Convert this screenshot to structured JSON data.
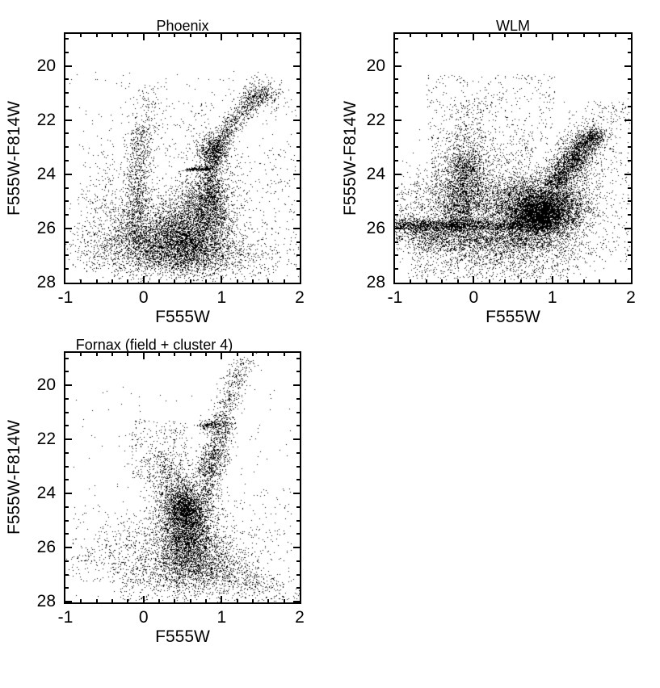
{
  "page": {
    "background": "#ffffff",
    "marker_color": "#000000"
  },
  "chart_data": [
    {
      "type": "scatter",
      "title": "Phoenix",
      "xlabel": "F555W",
      "ylabel": "F555W-F814W",
      "xlim": [
        -1,
        2
      ],
      "ylim": [
        28.0,
        18.82
      ],
      "xticks": [
        -1,
        0,
        1,
        2
      ],
      "yticks": [
        20,
        22,
        24,
        26,
        28
      ],
      "xtick_minor_step": 0.2,
      "ytick_minor_step": 0.5,
      "grid": false,
      "legend": null,
      "marker_size_px": 1,
      "seed": 101,
      "clusters": [
        {
          "kind": "gauss",
          "x": 0.48,
          "y": 26.35,
          "sx": 0.3,
          "sy": 0.62,
          "n": 2800
        },
        {
          "kind": "gauss",
          "x": 0.52,
          "y": 26.9,
          "sx": 0.45,
          "sy": 0.45,
          "n": 1400
        },
        {
          "kind": "gauss",
          "x": 0.3,
          "y": 25.9,
          "sx": 0.45,
          "sy": 0.75,
          "n": 900
        },
        {
          "kind": "band",
          "x1": -0.13,
          "y1": 26.5,
          "x2": -0.03,
          "y2": 22.2,
          "s": 0.085,
          "n": 950
        },
        {
          "kind": "band",
          "x1": 0.0,
          "y1": 22.2,
          "x2": 0.08,
          "y2": 20.7,
          "s": 0.1,
          "n": 90
        },
        {
          "kind": "gauss",
          "x": -0.38,
          "y": 25.2,
          "sx": 0.22,
          "sy": 1.1,
          "n": 380
        },
        {
          "kind": "gauss",
          "x": -0.35,
          "y": 26.6,
          "sx": 0.3,
          "sy": 0.5,
          "n": 320
        },
        {
          "kind": "gauss",
          "x": 0.78,
          "y": 25.0,
          "sx": 0.2,
          "sy": 0.55,
          "n": 1100
        },
        {
          "kind": "band",
          "x1": 0.86,
          "y1": 26.0,
          "x2": 0.88,
          "y2": 23.2,
          "s": 0.09,
          "n": 900
        },
        {
          "kind": "gauss",
          "x": 0.9,
          "y": 23.1,
          "sx": 0.11,
          "sy": 0.3,
          "n": 600
        },
        {
          "kind": "band",
          "x1": 0.55,
          "y1": 23.82,
          "x2": 0.86,
          "y2": 23.78,
          "s": 0.03,
          "n": 170
        },
        {
          "kind": "band",
          "x1": 0.93,
          "y1": 23.1,
          "x2": 1.16,
          "y2": 22.0,
          "s": 0.07,
          "n": 330
        },
        {
          "kind": "band",
          "x1": 1.16,
          "y1": 22.0,
          "x2": 1.5,
          "y2": 20.95,
          "s": 0.09,
          "n": 330
        },
        {
          "kind": "gauss",
          "x": 1.52,
          "y": 21.05,
          "sx": 0.14,
          "sy": 0.28,
          "n": 280
        },
        {
          "kind": "band",
          "x1": -0.8,
          "y1": 26.9,
          "x2": 1.85,
          "y2": 27.25,
          "s": 0.45,
          "n": 520
        },
        {
          "kind": "uniform",
          "xr": [
            -0.95,
            1.95
          ],
          "yr": [
            20.2,
            27.9
          ],
          "n": 330
        },
        {
          "kind": "uniform",
          "xr": [
            0.05,
            0.9
          ],
          "yr": [
            21.2,
            23.4
          ],
          "n": 110
        },
        {
          "kind": "uniform",
          "xr": [
            1.0,
            1.95
          ],
          "yr": [
            23.0,
            27.0
          ],
          "n": 160
        }
      ]
    },
    {
      "type": "scatter",
      "title": "WLM",
      "xlabel": "F555W",
      "ylabel": "F555W-F814W",
      "xlim": [
        -1,
        2
      ],
      "ylim": [
        28.0,
        18.82
      ],
      "xticks": [
        -1,
        0,
        1,
        2
      ],
      "yticks": [
        20,
        22,
        24,
        26,
        28
      ],
      "xtick_minor_step": 0.2,
      "ytick_minor_step": 0.5,
      "grid": false,
      "legend": null,
      "marker_size_px": 1,
      "seed": 202,
      "clusters": [
        {
          "kind": "gauss",
          "x": 0.88,
          "y": 25.15,
          "sx": 0.3,
          "sy": 0.55,
          "n": 3800
        },
        {
          "kind": "gauss",
          "x": 0.85,
          "y": 25.45,
          "sx": 0.18,
          "sy": 0.33,
          "n": 2400
        },
        {
          "kind": "band",
          "x1": 1.02,
          "y1": 24.4,
          "x2": 1.48,
          "y2": 22.65,
          "s": 0.1,
          "n": 1400
        },
        {
          "kind": "gauss",
          "x": 1.25,
          "y": 23.4,
          "sx": 0.2,
          "sy": 0.5,
          "n": 500
        },
        {
          "kind": "gauss",
          "x": 1.5,
          "y": 22.55,
          "sx": 0.1,
          "sy": 0.16,
          "n": 380
        },
        {
          "kind": "band",
          "x1": -0.18,
          "y1": 26.05,
          "x2": -0.08,
          "y2": 23.3,
          "s": 0.13,
          "n": 1500
        },
        {
          "kind": "gauss",
          "x": -0.18,
          "y": 24.7,
          "sx": 0.3,
          "sy": 0.85,
          "n": 850
        },
        {
          "kind": "band",
          "x1": -0.1,
          "y1": 23.3,
          "x2": 0.0,
          "y2": 21.2,
          "s": 0.14,
          "n": 230
        },
        {
          "kind": "band",
          "x1": -0.98,
          "y1": 25.88,
          "x2": 1.05,
          "y2": 25.92,
          "s": 0.12,
          "n": 2000
        },
        {
          "kind": "band",
          "x1": -0.7,
          "y1": 26.35,
          "x2": 1.0,
          "y2": 26.45,
          "s": 0.2,
          "n": 1100
        },
        {
          "kind": "band",
          "x1": -1.0,
          "y1": 25.9,
          "x2": -0.45,
          "y2": 25.9,
          "s": 0.22,
          "n": 420
        },
        {
          "kind": "gauss",
          "x": 0.3,
          "y": 26.8,
          "sx": 0.55,
          "sy": 0.5,
          "n": 1000
        },
        {
          "kind": "uniform",
          "xr": [
            -0.8,
            1.35
          ],
          "yr": [
            26.1,
            27.85
          ],
          "n": 700
        },
        {
          "kind": "gauss",
          "x": 0.35,
          "y": 25.2,
          "sx": 0.42,
          "sy": 0.55,
          "n": 900
        },
        {
          "kind": "uniform",
          "xr": [
            -0.55,
            0.75
          ],
          "yr": [
            22.4,
            25.3
          ],
          "n": 800
        },
        {
          "kind": "uniform",
          "xr": [
            -0.6,
            1.05
          ],
          "yr": [
            20.3,
            22.4
          ],
          "n": 300
        },
        {
          "kind": "uniform",
          "xr": [
            1.15,
            1.98
          ],
          "yr": [
            21.3,
            27.2
          ],
          "n": 380
        },
        {
          "kind": "uniform",
          "xr": [
            -0.98,
            -0.55
          ],
          "yr": [
            24.3,
            26.9
          ],
          "n": 260
        },
        {
          "kind": "band",
          "x1": 1.5,
          "y1": 22.4,
          "x2": 1.85,
          "y2": 21.3,
          "s": 0.14,
          "n": 90
        }
      ]
    },
    {
      "type": "scatter",
      "title": "Fornax (field + cluster 4)",
      "xlabel": "F555W",
      "ylabel": "F555W-F814W",
      "xlim": [
        -1,
        2
      ],
      "ylim": [
        28.03,
        18.8
      ],
      "xticks": [
        -1,
        0,
        1,
        2
      ],
      "yticks": [
        20,
        22,
        24,
        26,
        28
      ],
      "xtick_minor_step": 0.2,
      "ytick_minor_step": 0.5,
      "grid": false,
      "legend": null,
      "marker_size_px": 1,
      "seed": 303,
      "clusters": [
        {
          "kind": "gauss",
          "x": 0.55,
          "y": 25.2,
          "sx": 0.17,
          "sy": 0.72,
          "n": 2700
        },
        {
          "kind": "gauss",
          "x": 0.52,
          "y": 24.45,
          "sx": 0.14,
          "sy": 0.38,
          "n": 1100
        },
        {
          "kind": "gauss",
          "x": 0.62,
          "y": 26.3,
          "sx": 0.3,
          "sy": 0.5,
          "n": 1400
        },
        {
          "kind": "band",
          "x1": 0.05,
          "y1": 26.9,
          "x2": 1.15,
          "y2": 27.3,
          "s": 0.33,
          "n": 600
        },
        {
          "kind": "uniform",
          "xr": [
            -0.3,
            1.5
          ],
          "yr": [
            26.3,
            27.95
          ],
          "n": 380
        },
        {
          "kind": "band",
          "x1": 0.78,
          "y1": 24.2,
          "x2": 0.95,
          "y2": 22.3,
          "s": 0.09,
          "n": 380
        },
        {
          "kind": "band",
          "x1": 0.78,
          "y1": 23.3,
          "x2": 1.0,
          "y2": 21.7,
          "s": 0.08,
          "n": 420
        },
        {
          "kind": "gauss",
          "x": 0.97,
          "y": 21.5,
          "sx": 0.1,
          "sy": 0.2,
          "n": 260
        },
        {
          "kind": "band",
          "x1": 0.72,
          "y1": 21.5,
          "x2": 0.92,
          "y2": 21.42,
          "s": 0.05,
          "n": 110
        },
        {
          "kind": "band",
          "x1": 1.02,
          "y1": 21.2,
          "x2": 1.28,
          "y2": 19.0,
          "s": 0.09,
          "n": 330
        },
        {
          "kind": "gauss",
          "x": 0.33,
          "y": 23.6,
          "sx": 0.16,
          "sy": 0.65,
          "n": 380
        },
        {
          "kind": "uniform",
          "xr": [
            -0.15,
            0.55
          ],
          "yr": [
            21.3,
            23.5
          ],
          "n": 200
        },
        {
          "kind": "gauss",
          "x": 0.22,
          "y": 22.7,
          "sx": 0.22,
          "sy": 0.5,
          "n": 140
        },
        {
          "kind": "band",
          "x1": -0.72,
          "y1": 26.8,
          "x2": 0.18,
          "y2": 25.1,
          "s": 0.25,
          "n": 260
        },
        {
          "kind": "uniform",
          "xr": [
            -0.92,
            0.1
          ],
          "yr": [
            24.5,
            27.3
          ],
          "n": 160
        },
        {
          "kind": "band",
          "x1": 0.92,
          "y1": 26.6,
          "x2": 1.88,
          "y2": 27.85,
          "s": 0.22,
          "n": 280
        },
        {
          "kind": "uniform",
          "xr": [
            0.95,
            1.9
          ],
          "yr": [
            23.8,
            26.6
          ],
          "n": 150
        },
        {
          "kind": "uniform",
          "xr": [
            -0.9,
            1.9
          ],
          "yr": [
            20.0,
            27.9
          ],
          "n": 180
        }
      ]
    }
  ]
}
